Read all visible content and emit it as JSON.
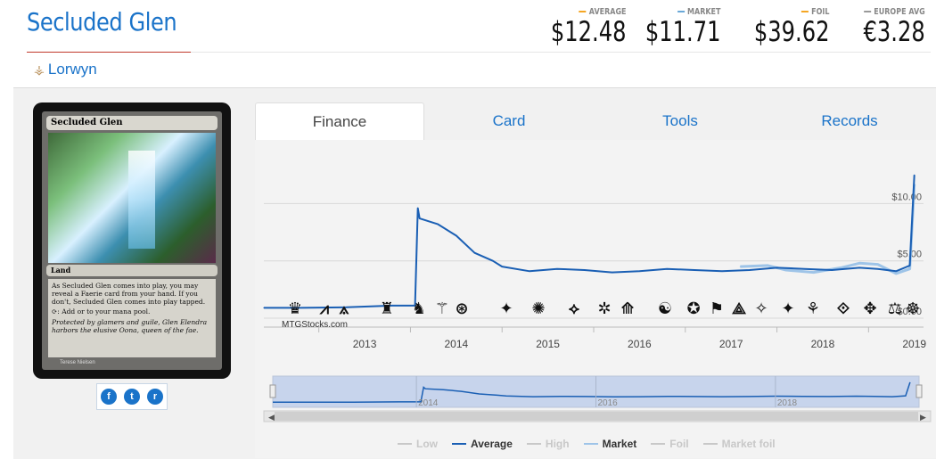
{
  "card": {
    "title": "Secluded Glen",
    "set": "Lorwyn",
    "card_name": "Secluded Glen",
    "type_line": "Land",
    "rules_text": "As Secluded Glen comes into play, you may reveal a Faerie card from your hand. If you don't, Secluded Glen comes into play tapped.",
    "mana_text": ": Add  or  to your mana pool.",
    "flavor_text": "Protected by glamers and guile, Glen Elendra harbors the elusive Oona, queen of the fae.",
    "artist": "Terese Nielsen"
  },
  "prices": [
    {
      "label": "AVERAGE",
      "value": "$12.48",
      "color": "#f5a623"
    },
    {
      "label": "MARKET",
      "value": "$11.71",
      "color": "#6aa8d8"
    },
    {
      "label": "FOIL",
      "value": "$39.62",
      "color": "#f5a623"
    },
    {
      "label": "EUROPE AVG",
      "value": "€3.28",
      "color": "#999999"
    }
  ],
  "social": {
    "facebook": "f",
    "twitter": "t",
    "reddit": "r"
  },
  "tabs": [
    {
      "label": "Finance",
      "active": true
    },
    {
      "label": "Card",
      "active": false
    },
    {
      "label": "Tools",
      "active": false
    },
    {
      "label": "Records",
      "active": false
    }
  ],
  "chart": {
    "watermark": "MTGStocks.com",
    "nav_ticks": [
      "2014",
      "2016",
      "2018"
    ],
    "legend": [
      {
        "name": "Low",
        "color": "#c8c8c8",
        "active": false
      },
      {
        "name": "Average",
        "color": "#1a5fb4",
        "active": true
      },
      {
        "name": "High",
        "color": "#c8c8c8",
        "active": false
      },
      {
        "name": "Market",
        "color": "#9ec4e8",
        "active": true
      },
      {
        "name": "Foil",
        "color": "#c8c8c8",
        "active": false
      },
      {
        "name": "Market foil",
        "color": "#c8c8c8",
        "active": false
      }
    ]
  },
  "chart_data": {
    "type": "line",
    "x_ticks": [
      "2013",
      "2014",
      "2015",
      "2016",
      "2017",
      "2018",
      "2019"
    ],
    "y_ticks": [
      "$0.00",
      "$5.00",
      "$10.00"
    ],
    "ylim": [
      0,
      14
    ],
    "xlim": [
      2012.4,
      2019.6
    ],
    "grid": true,
    "legend_position": "bottom",
    "series": [
      {
        "name": "Average",
        "points": [
          [
            2012.4,
            0.9
          ],
          [
            2012.8,
            0.9
          ],
          [
            2013.3,
            0.95
          ],
          [
            2013.8,
            1.1
          ],
          [
            2014.05,
            1.1
          ],
          [
            2014.08,
            9.6
          ],
          [
            2014.1,
            8.7
          ],
          [
            2014.3,
            8.2
          ],
          [
            2014.5,
            7.2
          ],
          [
            2014.7,
            5.7
          ],
          [
            2014.9,
            5.0
          ],
          [
            2015.0,
            4.5
          ],
          [
            2015.3,
            4.1
          ],
          [
            2015.6,
            4.3
          ],
          [
            2015.9,
            4.2
          ],
          [
            2016.2,
            4.0
          ],
          [
            2016.5,
            4.1
          ],
          [
            2016.8,
            4.3
          ],
          [
            2017.1,
            4.2
          ],
          [
            2017.4,
            4.1
          ],
          [
            2017.7,
            4.2
          ],
          [
            2018.0,
            4.4
          ],
          [
            2018.3,
            4.3
          ],
          [
            2018.6,
            4.2
          ],
          [
            2018.9,
            4.4
          ],
          [
            2019.1,
            4.3
          ],
          [
            2019.3,
            4.1
          ],
          [
            2019.45,
            4.6
          ],
          [
            2019.5,
            12.5
          ]
        ]
      },
      {
        "name": "Market",
        "points": [
          [
            2017.6,
            4.5
          ],
          [
            2017.9,
            4.6
          ],
          [
            2018.1,
            4.2
          ],
          [
            2018.4,
            4.0
          ],
          [
            2018.7,
            4.4
          ],
          [
            2018.9,
            4.8
          ],
          [
            2019.1,
            4.7
          ],
          [
            2019.3,
            3.9
          ],
          [
            2019.45,
            4.3
          ],
          [
            2019.5,
            11.7
          ]
        ]
      }
    ]
  }
}
